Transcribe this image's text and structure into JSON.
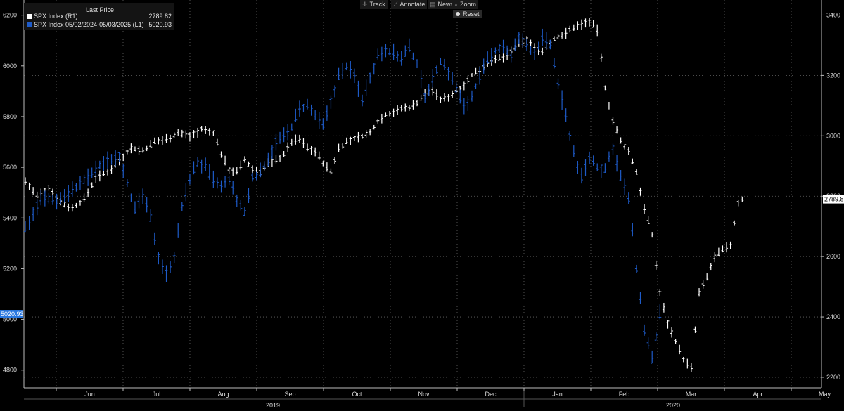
{
  "toolbar": {
    "track": "Track",
    "annotate": "Annotate",
    "news": "News",
    "zoom": "Zoom",
    "reset": "Reset"
  },
  "legend": {
    "header": "Last Price",
    "series_white_label": "SPX Index  (R1)",
    "series_white_value": "2789.82",
    "series_blue_label": "SPX Index 05/02/2024-05/03/2025   (L1)",
    "series_blue_value": "5020.93"
  },
  "colors": {
    "white_series": "#ffffff",
    "blue_series": "#1e5bc8",
    "background": "#000000",
    "grid": "#666666"
  },
  "chart_data": {
    "type": "bar",
    "ohlc_style": true,
    "grid": true,
    "left_axis": {
      "ticks": [
        4800,
        5000,
        5200,
        5400,
        5600,
        5800,
        6000,
        6200
      ],
      "range": [
        4730,
        6260
      ],
      "last_value_label": "5020.93"
    },
    "right_axis": {
      "ticks": [
        2200,
        2400,
        2600,
        2800,
        3000,
        3200,
        3400
      ],
      "range": [
        2165,
        3450
      ],
      "last_value_label": "2789.82"
    },
    "x_months": [
      "Jun",
      "Jul",
      "Aug",
      "Sep",
      "Oct",
      "Nov",
      "Dec",
      "Jan",
      "Feb",
      "Mar",
      "Apr",
      "May"
    ],
    "x_years": [
      "2019",
      "2020"
    ],
    "series": [
      {
        "color": "white",
        "axis": "right",
        "anchors": [
          [
            0,
            2850
          ],
          [
            3,
            2800
          ],
          [
            6,
            2830
          ],
          [
            9,
            2780
          ],
          [
            12,
            2760
          ],
          [
            15,
            2790
          ],
          [
            18,
            2860
          ],
          [
            21,
            2880
          ],
          [
            24,
            2920
          ],
          [
            27,
            2960
          ],
          [
            30,
            2950
          ],
          [
            33,
            2980
          ],
          [
            36,
            2990
          ],
          [
            39,
            3010
          ],
          [
            42,
            3000
          ],
          [
            45,
            3020
          ],
          [
            48,
            3010
          ],
          [
            50,
            2940
          ],
          [
            52,
            2890
          ],
          [
            54,
            2880
          ],
          [
            56,
            2920
          ],
          [
            58,
            2890
          ],
          [
            60,
            2880
          ],
          [
            62,
            2910
          ],
          [
            64,
            2920
          ],
          [
            66,
            2940
          ],
          [
            68,
            2980
          ],
          [
            70,
            2990
          ],
          [
            72,
            2960
          ],
          [
            74,
            2950
          ],
          [
            76,
            2910
          ],
          [
            78,
            2880
          ],
          [
            80,
            2960
          ],
          [
            82,
            2980
          ],
          [
            84,
            2990
          ],
          [
            86,
            3000
          ],
          [
            88,
            3010
          ],
          [
            90,
            3050
          ],
          [
            92,
            3070
          ],
          [
            94,
            3080
          ],
          [
            96,
            3090
          ],
          [
            98,
            3095
          ],
          [
            100,
            3110
          ],
          [
            102,
            3140
          ],
          [
            104,
            3150
          ],
          [
            106,
            3120
          ],
          [
            108,
            3130
          ],
          [
            110,
            3150
          ],
          [
            112,
            3170
          ],
          [
            114,
            3200
          ],
          [
            116,
            3220
          ],
          [
            118,
            3240
          ],
          [
            120,
            3250
          ],
          [
            122,
            3260
          ],
          [
            124,
            3280
          ],
          [
            126,
            3300
          ],
          [
            128,
            3320
          ],
          [
            130,
            3290
          ],
          [
            132,
            3280
          ],
          [
            134,
            3310
          ],
          [
            136,
            3330
          ],
          [
            138,
            3340
          ],
          [
            140,
            3360
          ],
          [
            142,
            3370
          ],
          [
            144,
            3380
          ],
          [
            146,
            3350
          ],
          [
            148,
            3160
          ],
          [
            150,
            3050
          ],
          [
            152,
            2980
          ],
          [
            154,
            2950
          ],
          [
            156,
            2880
          ],
          [
            158,
            2760
          ],
          [
            160,
            2670
          ],
          [
            162,
            2480
          ],
          [
            164,
            2380
          ],
          [
            166,
            2320
          ],
          [
            168,
            2260
          ],
          [
            170,
            2230
          ],
          [
            172,
            2480
          ],
          [
            174,
            2530
          ],
          [
            176,
            2600
          ],
          [
            178,
            2620
          ],
          [
            180,
            2640
          ],
          [
            182,
            2780
          ],
          [
            183,
            2789.82
          ]
        ]
      },
      {
        "color": "blue",
        "axis": "left",
        "anchors": [
          [
            0,
            5360
          ],
          [
            4,
            5480
          ],
          [
            8,
            5470
          ],
          [
            12,
            5510
          ],
          [
            16,
            5560
          ],
          [
            20,
            5620
          ],
          [
            24,
            5650
          ],
          [
            26,
            5540
          ],
          [
            28,
            5430
          ],
          [
            30,
            5490
          ],
          [
            32,
            5400
          ],
          [
            34,
            5250
          ],
          [
            36,
            5180
          ],
          [
            38,
            5250
          ],
          [
            40,
            5440
          ],
          [
            42,
            5560
          ],
          [
            44,
            5620
          ],
          [
            46,
            5600
          ],
          [
            48,
            5550
          ],
          [
            50,
            5520
          ],
          [
            52,
            5550
          ],
          [
            54,
            5470
          ],
          [
            56,
            5420
          ],
          [
            58,
            5560
          ],
          [
            60,
            5580
          ],
          [
            62,
            5640
          ],
          [
            64,
            5700
          ],
          [
            66,
            5720
          ],
          [
            68,
            5760
          ],
          [
            70,
            5830
          ],
          [
            72,
            5840
          ],
          [
            74,
            5800
          ],
          [
            76,
            5760
          ],
          [
            78,
            5860
          ],
          [
            80,
            5960
          ],
          [
            82,
            6000
          ],
          [
            84,
            5960
          ],
          [
            86,
            5870
          ],
          [
            88,
            5960
          ],
          [
            90,
            6040
          ],
          [
            92,
            6070
          ],
          [
            94,
            6050
          ],
          [
            96,
            6030
          ],
          [
            98,
            6070
          ],
          [
            100,
            6010
          ],
          [
            102,
            5880
          ],
          [
            104,
            5950
          ],
          [
            106,
            6020
          ],
          [
            108,
            5980
          ],
          [
            110,
            5910
          ],
          [
            112,
            5840
          ],
          [
            114,
            5880
          ],
          [
            116,
            5960
          ],
          [
            118,
            6020
          ],
          [
            120,
            6060
          ],
          [
            122,
            6080
          ],
          [
            124,
            6040
          ],
          [
            126,
            6110
          ],
          [
            128,
            6080
          ],
          [
            130,
            6050
          ],
          [
            132,
            6110
          ],
          [
            134,
            6080
          ],
          [
            136,
            5930
          ],
          [
            138,
            5800
          ],
          [
            140,
            5660
          ],
          [
            142,
            5560
          ],
          [
            144,
            5640
          ],
          [
            146,
            5600
          ],
          [
            148,
            5590
          ],
          [
            150,
            5680
          ],
          [
            152,
            5560
          ],
          [
            154,
            5480
          ],
          [
            156,
            5200
          ],
          [
            158,
            4960
          ],
          [
            160,
            4840
          ],
          [
            162,
            5020.93
          ]
        ]
      }
    ]
  }
}
